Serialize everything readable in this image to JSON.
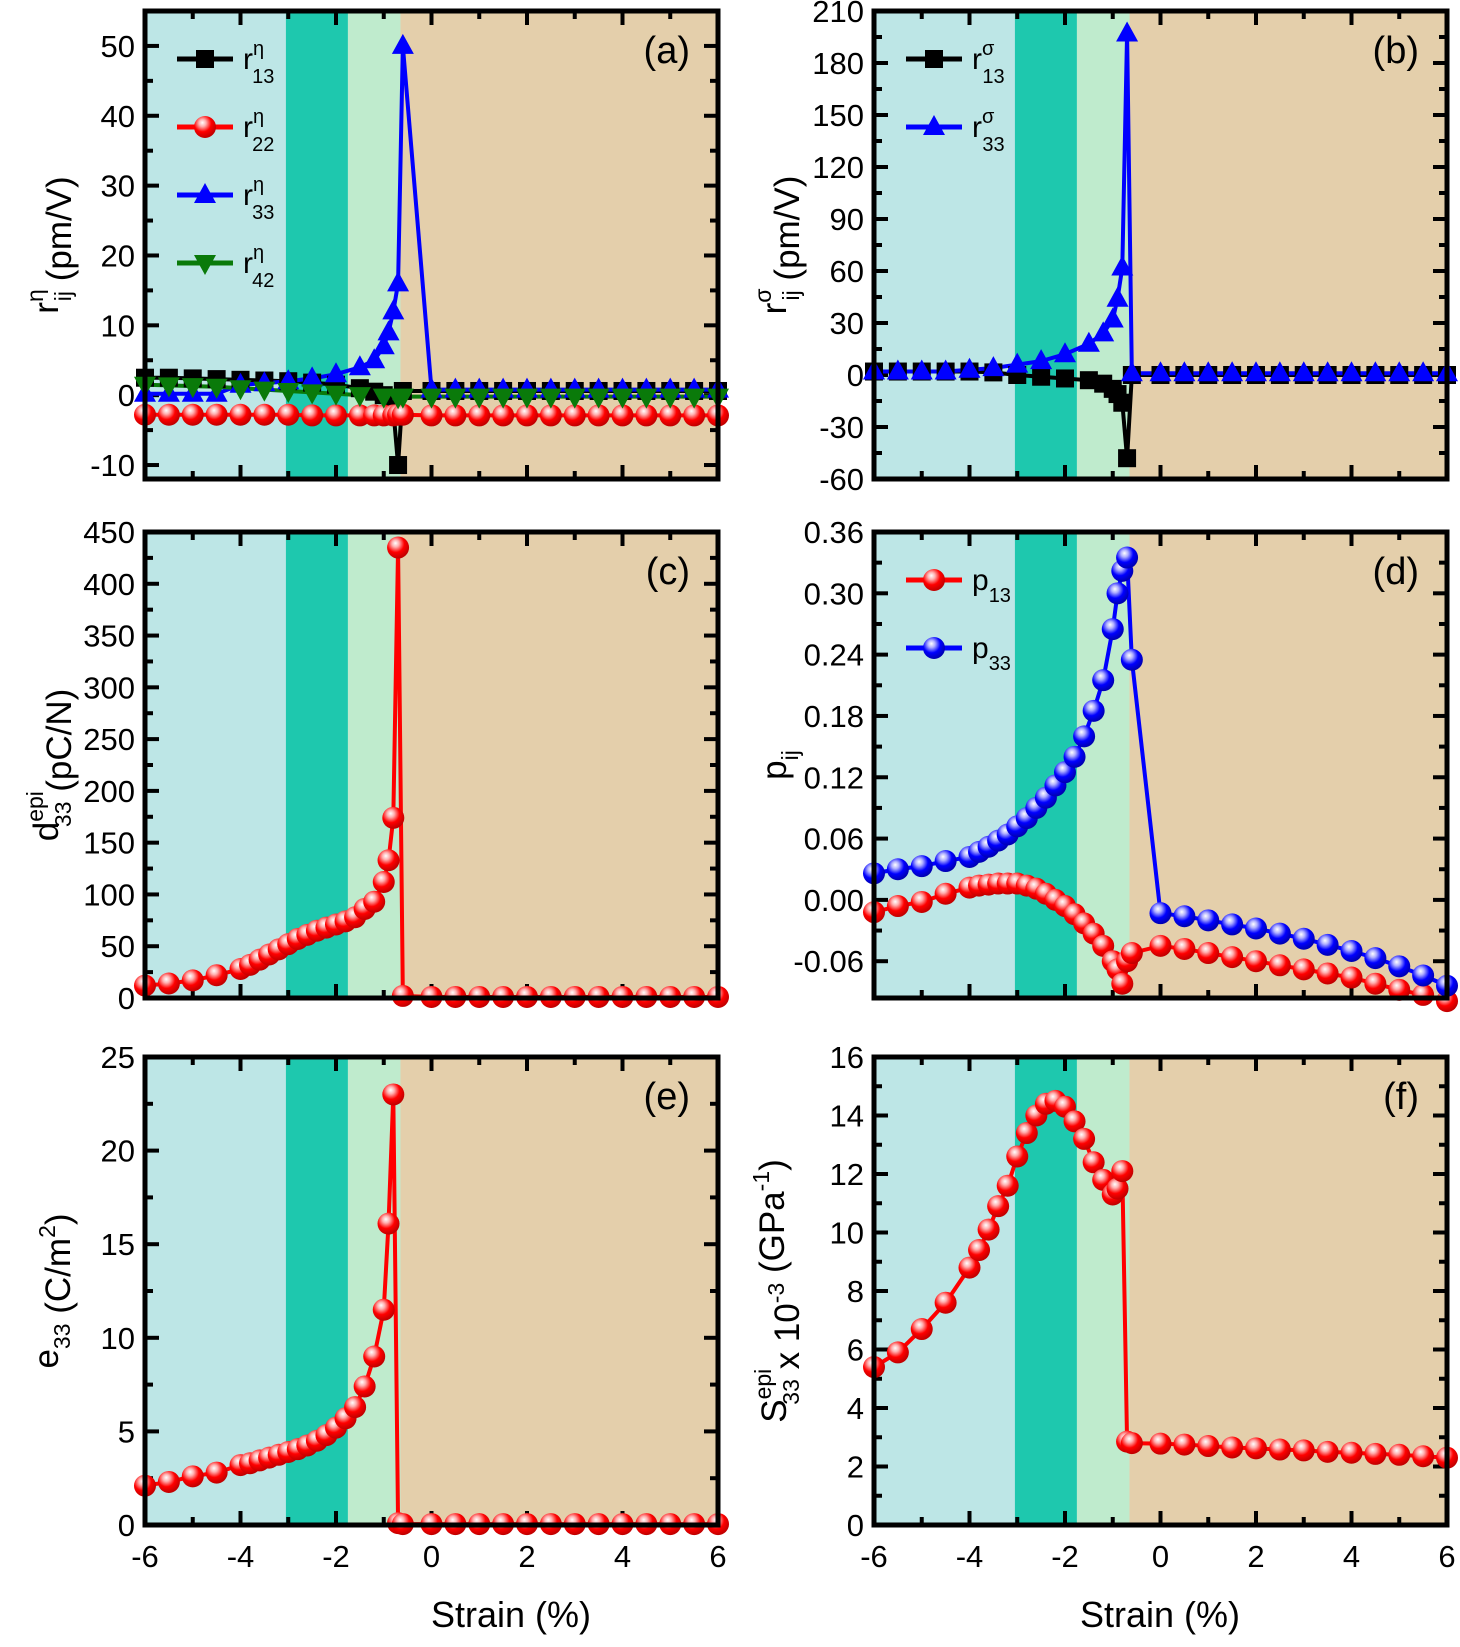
{
  "figure": {
    "xlabel": "Strain (%)",
    "regions": [
      {
        "name": "region-1",
        "from": -6,
        "to": -3.05,
        "color": "#bde6e6"
      },
      {
        "name": "region-2",
        "from": -3.05,
        "to": -1.75,
        "color": "#1ec8ae"
      },
      {
        "name": "region-3",
        "from": -1.75,
        "to": -0.65,
        "color": "#bfebcd"
      },
      {
        "name": "region-4",
        "from": -0.65,
        "to": 6,
        "color": "#e4cfab"
      }
    ],
    "colors": {
      "black": "#000000",
      "red": "#ff0000",
      "blue": "#0000ff",
      "green": "#0a7a0a"
    }
  },
  "chart_data": [
    {
      "type": "line",
      "panel": "(a)",
      "ylabel": "r_ij^η (pm/V)",
      "ylabel_main": "r",
      "ylabel_sup": "η",
      "ylabel_sub": "ij",
      "ylabel_unit": "(pm/V)",
      "xlim": [
        -6,
        6
      ],
      "ylim": [
        -12,
        55
      ],
      "xticks": [
        -6,
        -4,
        -2,
        0,
        2,
        4,
        6
      ],
      "yticks": [
        -10,
        0,
        10,
        20,
        30,
        40,
        50
      ],
      "legend_position": "top-left",
      "series": [
        {
          "name": "r13η",
          "label_main": "r",
          "label_sup": "η",
          "label_sub": "13",
          "color": "#000000",
          "marker": "square",
          "x": [
            -6,
            -5.5,
            -5,
            -4.5,
            -4,
            -3.5,
            -3,
            -2.5,
            -2,
            -1.5,
            -1.2,
            -1,
            -0.8,
            -0.7,
            -0.6,
            0,
            0.5,
            1,
            1.5,
            2,
            2.5,
            3,
            3.5,
            4,
            4.5,
            5,
            5.5,
            6
          ],
          "y": [
            2.5,
            2.5,
            2.4,
            2.3,
            2.2,
            2.1,
            2.0,
            1.8,
            1.5,
            1.0,
            0.5,
            0,
            -2,
            -10,
            0.6,
            0.6,
            0.6,
            0.6,
            0.6,
            0.6,
            0.6,
            0.6,
            0.6,
            0.6,
            0.6,
            0.6,
            0.6,
            0.6
          ]
        },
        {
          "name": "r22η",
          "label_main": "r",
          "label_sup": "η",
          "label_sub": "22",
          "color": "#ff0000",
          "marker": "sphere",
          "x": [
            -6,
            -5.5,
            -5,
            -4.5,
            -4,
            -3.5,
            -3,
            -2.5,
            -2,
            -1.5,
            -1.2,
            -1,
            -0.8,
            -0.7,
            -0.6,
            0,
            0.5,
            1,
            1.5,
            2,
            2.5,
            3,
            3.5,
            4,
            4.5,
            5,
            5.5,
            6
          ],
          "y": [
            -2.8,
            -2.8,
            -2.8,
            -2.8,
            -2.8,
            -2.8,
            -2.8,
            -2.9,
            -2.9,
            -2.9,
            -2.9,
            -2.9,
            -2.9,
            -2.8,
            -2.8,
            -2.9,
            -2.9,
            -2.9,
            -2.9,
            -2.9,
            -2.9,
            -2.9,
            -2.9,
            -2.9,
            -2.9,
            -2.9,
            -2.9,
            -2.9
          ]
        },
        {
          "name": "r33η",
          "label_main": "r",
          "label_sup": "η",
          "label_sub": "33",
          "color": "#0000ff",
          "marker": "triangle-up",
          "x": [
            -6,
            -5.5,
            -5,
            -4.5,
            -4,
            -3.5,
            -3,
            -2.5,
            -2,
            -1.5,
            -1.2,
            -1,
            -0.9,
            -0.8,
            -0.7,
            -0.6,
            0,
            0.5,
            1,
            1.5,
            2,
            2.5,
            3,
            3.5,
            4,
            4.5,
            5,
            5.5,
            6
          ],
          "y": [
            0.2,
            0.2,
            0.2,
            0.2,
            1.5,
            1.7,
            2.0,
            2.4,
            3.0,
            4.0,
            5.0,
            7.0,
            9.0,
            12,
            16,
            50,
            0.8,
            0.8,
            0.8,
            0.8,
            0.8,
            0.8,
            0.8,
            0.8,
            0.8,
            0.8,
            0.8,
            0.8,
            0.8
          ]
        },
        {
          "name": "r42η",
          "label_main": "r",
          "label_sup": "η",
          "label_sub": "42",
          "color": "#0a7a0a",
          "marker": "triangle-down",
          "x": [
            -6,
            -5.5,
            -5,
            -4.5,
            -4,
            -3.5,
            -3,
            -2.5,
            -2,
            -1.5,
            -1,
            -0.7,
            -0.6,
            0,
            0.5,
            1,
            1.5,
            2,
            2.5,
            3,
            3.5,
            4,
            4.5,
            5,
            5.5,
            6
          ],
          "y": [
            1.5,
            1.4,
            1.3,
            1.2,
            1.0,
            0.8,
            0.6,
            0.4,
            0.2,
            0,
            -0.2,
            -0.3,
            -0.2,
            -0.2,
            -0.2,
            -0.2,
            -0.2,
            -0.2,
            -0.2,
            -0.2,
            -0.2,
            -0.2,
            -0.2,
            -0.2,
            -0.2,
            -0.2
          ]
        }
      ]
    },
    {
      "type": "line",
      "panel": "(b)",
      "ylabel": "r_ij^σ (pm/V)",
      "ylabel_main": "r",
      "ylabel_sup": "σ",
      "ylabel_sub": "ij",
      "ylabel_unit": "(pm/V)",
      "xlim": [
        -6,
        6
      ],
      "ylim": [
        -60,
        210
      ],
      "xticks": [
        -6,
        -4,
        -2,
        0,
        2,
        4,
        6
      ],
      "yticks": [
        -60,
        -30,
        0,
        30,
        60,
        90,
        120,
        150,
        180,
        210
      ],
      "legend_position": "top-left",
      "series": [
        {
          "name": "r13σ",
          "label_main": "r",
          "label_sup": "σ",
          "label_sub": "13",
          "color": "#000000",
          "marker": "square",
          "x": [
            -6,
            -5.5,
            -5,
            -4.5,
            -4,
            -3.5,
            -3,
            -2.5,
            -2,
            -1.5,
            -1.2,
            -1,
            -0.9,
            -0.8,
            -0.7,
            -0.6,
            0,
            0.5,
            1,
            1.5,
            2,
            2.5,
            3,
            3.5,
            4,
            4.5,
            5,
            5.5,
            6
          ],
          "y": [
            2,
            2,
            2,
            2,
            2,
            1.5,
            0,
            -1,
            -2,
            -3,
            -5,
            -8,
            -11,
            -16,
            -48,
            0,
            0,
            0,
            0,
            0,
            0,
            0,
            0,
            0,
            0,
            0,
            0,
            0,
            0
          ]
        },
        {
          "name": "r33σ",
          "label_main": "r",
          "label_sup": "σ",
          "label_sub": "33",
          "color": "#0000ff",
          "marker": "triangle-up",
          "x": [
            -6,
            -5.5,
            -5,
            -4.5,
            -4,
            -3.5,
            -3,
            -2.5,
            -2,
            -1.5,
            -1.2,
            -1,
            -0.9,
            -0.8,
            -0.7,
            -0.6,
            0,
            0.5,
            1,
            1.5,
            2,
            2.5,
            3,
            3.5,
            4,
            4.5,
            5,
            5.5,
            6
          ],
          "y": [
            2,
            2,
            2,
            2,
            3,
            4,
            6,
            8,
            12,
            18,
            24,
            32,
            44,
            62,
            197,
            1,
            1,
            1,
            1,
            1,
            1,
            1,
            1,
            1,
            1,
            1,
            1,
            1,
            1
          ]
        }
      ]
    },
    {
      "type": "line",
      "panel": "(c)",
      "ylabel": "d_33^epi (pC/N)",
      "ylabel_main": "d",
      "ylabel_sup": "epi",
      "ylabel_sub": "33",
      "ylabel_unit": "(pC/N)",
      "xlim": [
        -6,
        6
      ],
      "ylim": [
        0,
        450
      ],
      "xticks": [
        -6,
        -4,
        -2,
        0,
        2,
        4,
        6
      ],
      "yticks": [
        0,
        50,
        100,
        150,
        200,
        250,
        300,
        350,
        400,
        450
      ],
      "legend_position": "none",
      "series": [
        {
          "name": "d33epi",
          "color": "#ff0000",
          "marker": "sphere",
          "x": [
            -6,
            -5.5,
            -5,
            -4.5,
            -4,
            -3.8,
            -3.6,
            -3.4,
            -3.2,
            -3,
            -2.8,
            -2.6,
            -2.4,
            -2.2,
            -2,
            -1.8,
            -1.6,
            -1.4,
            -1.2,
            -1,
            -0.9,
            -0.8,
            -0.7,
            -0.6,
            0,
            0.5,
            1,
            1.5,
            2,
            2.5,
            3,
            3.5,
            4,
            4.5,
            5,
            5.5,
            6
          ],
          "y": [
            12,
            14,
            17,
            22,
            28,
            32,
            37,
            42,
            47,
            52,
            57,
            61,
            65,
            68,
            71,
            74,
            78,
            86,
            93,
            112,
            133,
            174,
            435,
            2,
            1,
            1,
            1,
            1,
            1,
            1,
            1,
            1,
            1,
            1,
            1,
            1,
            1
          ]
        }
      ]
    },
    {
      "type": "line",
      "panel": "(d)",
      "ylabel": "p_ij",
      "ylabel_main": "p",
      "ylabel_sub": "ij",
      "xlim": [
        -6,
        6
      ],
      "ylim": [
        -0.096,
        0.36
      ],
      "xticks": [
        -6,
        -4,
        -2,
        0,
        2,
        4,
        6
      ],
      "yticks": [
        -0.06,
        0.0,
        0.06,
        0.12,
        0.18,
        0.24,
        0.3,
        0.36
      ],
      "ytick_labels": [
        "-0.06",
        "0.00",
        "0.06",
        "0.12",
        "0.18",
        "0.24",
        "0.30",
        "0.36"
      ],
      "legend_position": "top-left",
      "series": [
        {
          "name": "p13",
          "label_main": "p",
          "label_sub": "13",
          "color": "#ff0000",
          "marker": "sphere",
          "x": [
            -6,
            -5.5,
            -5,
            -4.5,
            -4,
            -3.8,
            -3.6,
            -3.4,
            -3.2,
            -3,
            -2.8,
            -2.6,
            -2.4,
            -2.2,
            -2,
            -1.8,
            -1.6,
            -1.4,
            -1.2,
            -1,
            -0.9,
            -0.8,
            -0.7,
            -0.6,
            0,
            0.5,
            1,
            1.5,
            2,
            2.5,
            3,
            3.5,
            4,
            4.5,
            5,
            5.5,
            6
          ],
          "y": [
            -0.012,
            -0.006,
            -0.002,
            0.006,
            0.012,
            0.014,
            0.015,
            0.016,
            0.016,
            0.016,
            0.014,
            0.011,
            0.006,
            0.0,
            -0.006,
            -0.014,
            -0.023,
            -0.033,
            -0.045,
            -0.06,
            -0.068,
            -0.082,
            -0.06,
            -0.052,
            -0.045,
            -0.048,
            -0.052,
            -0.056,
            -0.06,
            -0.064,
            -0.068,
            -0.072,
            -0.076,
            -0.082,
            -0.088,
            -0.093,
            -0.099
          ]
        },
        {
          "name": "p33",
          "label_main": "p",
          "label_sub": "33",
          "color": "#0000ff",
          "marker": "sphere",
          "x": [
            -6,
            -5.5,
            -5,
            -4.5,
            -4,
            -3.8,
            -3.6,
            -3.4,
            -3.2,
            -3,
            -2.8,
            -2.6,
            -2.4,
            -2.2,
            -2,
            -1.8,
            -1.6,
            -1.4,
            -1.2,
            -1,
            -0.9,
            -0.8,
            -0.7,
            -0.6,
            0,
            0.5,
            1,
            1.5,
            2,
            2.5,
            3,
            3.5,
            4,
            4.5,
            5,
            5.5,
            6
          ],
          "y": [
            0.026,
            0.03,
            0.033,
            0.038,
            0.042,
            0.047,
            0.052,
            0.058,
            0.064,
            0.072,
            0.08,
            0.09,
            0.1,
            0.112,
            0.125,
            0.14,
            0.16,
            0.185,
            0.215,
            0.265,
            0.3,
            0.322,
            0.335,
            0.235,
            -0.013,
            -0.016,
            -0.02,
            -0.024,
            -0.028,
            -0.033,
            -0.038,
            -0.044,
            -0.05,
            -0.057,
            -0.065,
            -0.074,
            -0.084
          ]
        }
      ]
    },
    {
      "type": "line",
      "panel": "(e)",
      "ylabel": "e_33 (C/m^2)",
      "ylabel_main": "e",
      "ylabel_sub": "33",
      "ylabel_unit": "(C/m",
      "ylabel_unit_sup": "2",
      "ylabel_unit_end": ")",
      "xlim": [
        -6,
        6
      ],
      "ylim": [
        0,
        25
      ],
      "xticks": [
        -6,
        -4,
        -2,
        0,
        2,
        4,
        6
      ],
      "yticks": [
        0,
        5,
        10,
        15,
        20,
        25
      ],
      "legend_position": "none",
      "series": [
        {
          "name": "e33",
          "color": "#ff0000",
          "marker": "sphere",
          "x": [
            -6,
            -5.5,
            -5,
            -4.5,
            -4,
            -3.8,
            -3.6,
            -3.4,
            -3.2,
            -3,
            -2.8,
            -2.6,
            -2.4,
            -2.2,
            -2,
            -1.8,
            -1.6,
            -1.4,
            -1.2,
            -1,
            -0.9,
            -0.8,
            -0.7,
            -0.6,
            0,
            0.5,
            1,
            1.5,
            2,
            2.5,
            3,
            3.5,
            4,
            4.5,
            5,
            5.5,
            6
          ],
          "y": [
            2.1,
            2.3,
            2.6,
            2.8,
            3.2,
            3.3,
            3.45,
            3.6,
            3.75,
            3.9,
            4.05,
            4.25,
            4.5,
            4.8,
            5.2,
            5.7,
            6.3,
            7.4,
            9.0,
            11.5,
            16.1,
            23.0,
            0.1,
            0.05,
            0.05,
            0.05,
            0.05,
            0.05,
            0.05,
            0.05,
            0.05,
            0.05,
            0.05,
            0.05,
            0.05,
            0.05,
            0.05
          ]
        }
      ]
    },
    {
      "type": "line",
      "panel": "(f)",
      "ylabel": "S_33^epi x 10^-3 (GPa^-1)",
      "ylabel_main": "S",
      "ylabel_sup": "epi",
      "ylabel_sub": "33",
      "ylabel_rest": " x 10",
      "ylabel_exp": "-3",
      "ylabel_unit": " (GPa",
      "ylabel_unit_sup": "-1",
      "ylabel_unit_end": ")",
      "xlim": [
        -6,
        6
      ],
      "ylim": [
        0,
        16
      ],
      "xticks": [
        -6,
        -4,
        -2,
        0,
        2,
        4,
        6
      ],
      "yticks": [
        0,
        2,
        4,
        6,
        8,
        10,
        12,
        14,
        16
      ],
      "legend_position": "none",
      "series": [
        {
          "name": "S33epi",
          "color": "#ff0000",
          "marker": "sphere",
          "x": [
            -6,
            -5.5,
            -5,
            -4.5,
            -4,
            -3.8,
            -3.6,
            -3.4,
            -3.2,
            -3,
            -2.8,
            -2.6,
            -2.4,
            -2.2,
            -2,
            -1.8,
            -1.6,
            -1.4,
            -1.2,
            -1,
            -0.9,
            -0.8,
            -0.7,
            -0.6,
            0,
            0.5,
            1,
            1.5,
            2,
            2.5,
            3,
            3.5,
            4,
            4.5,
            5,
            5.5,
            6
          ],
          "y": [
            5.4,
            5.9,
            6.7,
            7.6,
            8.8,
            9.4,
            10.1,
            10.9,
            11.6,
            12.6,
            13.4,
            14.0,
            14.4,
            14.5,
            14.3,
            13.8,
            13.2,
            12.4,
            11.8,
            11.3,
            11.5,
            12.1,
            2.85,
            2.8,
            2.78,
            2.75,
            2.7,
            2.65,
            2.62,
            2.58,
            2.55,
            2.5,
            2.47,
            2.43,
            2.4,
            2.35,
            2.3
          ]
        }
      ]
    }
  ]
}
